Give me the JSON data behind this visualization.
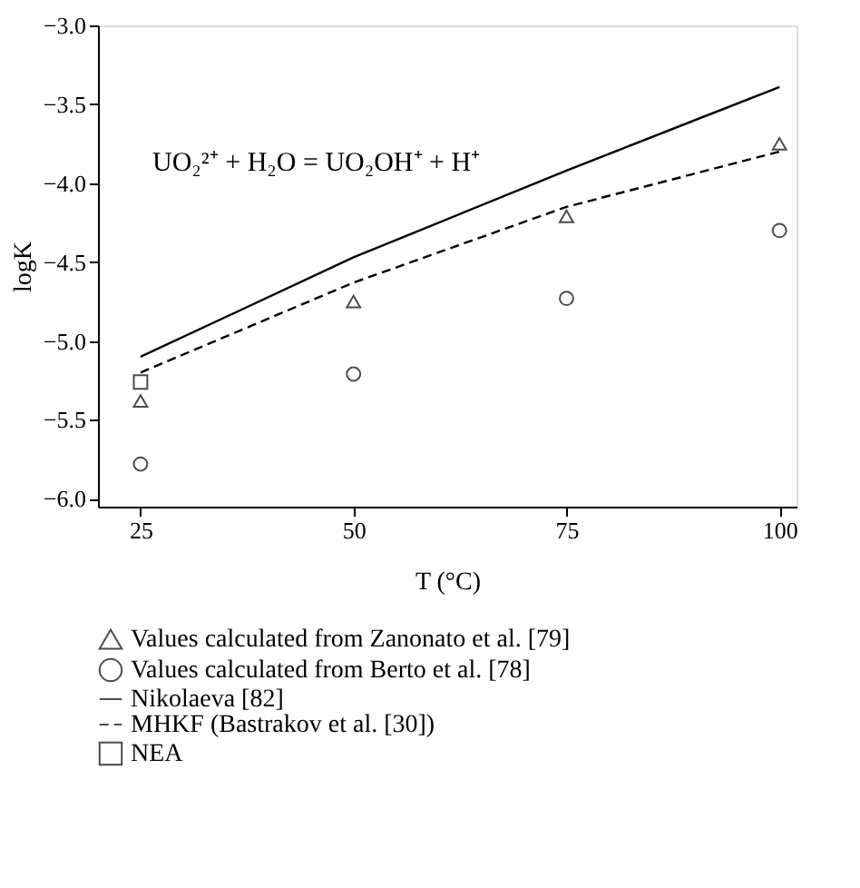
{
  "chart_data": {
    "type": "scatter",
    "xlabel": "T (°C)",
    "ylabel": "logK",
    "annotations": [
      "UO₂²⁺ + H₂O = UO₂OH⁺ + H⁺"
    ],
    "x": [
      25,
      50,
      75,
      100
    ],
    "series": [
      {
        "name": "Values calculated from Zanonato et al. [79]",
        "marker": "triangle",
        "color": "#000000",
        "values": [
          -5.38,
          -4.75,
          -4.21,
          -3.75
        ]
      },
      {
        "name": "Values calculated from Berto et al. [78]",
        "marker": "circle",
        "color": "#000000",
        "values": [
          -5.78,
          -5.21,
          -4.73,
          -4.3
        ]
      },
      {
        "name": "Nikolaeva [82]",
        "type": "line",
        "line_style": "solid",
        "color": "#000000",
        "values": [
          -5.1,
          -4.47,
          -3.92,
          -3.39
        ]
      },
      {
        "name": "MHKF (Bastrakov et al. [30])",
        "type": "line",
        "line_style": "dashed",
        "color": "#000000",
        "values": [
          -5.2,
          -4.63,
          -4.15,
          -3.8
        ]
      },
      {
        "name": "NEA",
        "marker": "square",
        "color": "#000000",
        "x": [
          25
        ],
        "values": [
          -5.26
        ]
      }
    ],
    "xlim": [
      20,
      102
    ],
    "xticks": [
      25,
      50,
      75,
      100
    ],
    "ylim": [
      -6.05,
      -3.0
    ],
    "yticks": [
      {
        "value": -6.0,
        "label": "−6.0"
      },
      {
        "value": -5.5,
        "label": "−5.5"
      },
      {
        "value": -5.0,
        "label": "−5.0"
      },
      {
        "value": -4.5,
        "label": "−4.5"
      },
      {
        "value": -4.0,
        "label": "−4.0"
      },
      {
        "value": -3.5,
        "label": "−3.5"
      },
      {
        "value": -3.0,
        "label": "−3.0"
      }
    ],
    "grid": false,
    "legend": "bottom"
  }
}
